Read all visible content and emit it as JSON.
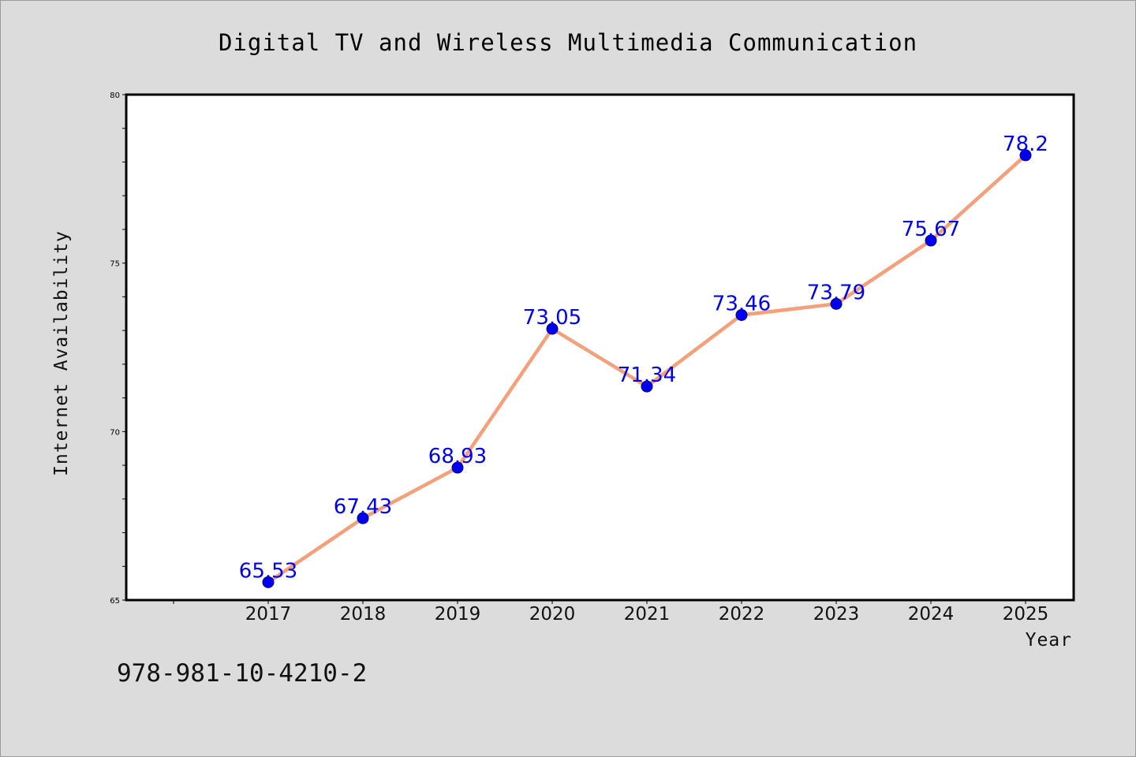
{
  "chart_data": {
    "type": "line",
    "title": "Digital TV and Wireless Multimedia Communication",
    "xlabel": "Year",
    "ylabel": "Internet Availability",
    "categories": [
      "2017",
      "2018",
      "2019",
      "2020",
      "2021",
      "2022",
      "2023",
      "2024",
      "2025"
    ],
    "series": [
      {
        "values": [
          65.53,
          67.43,
          68.93,
          73.05,
          71.34,
          73.46,
          73.79,
          75.67,
          78.2
        ],
        "labels": [
          "65.53",
          "67.43",
          "68.93",
          "73.05",
          "71.34",
          "73.46",
          "73.79",
          "75.67",
          "78.2"
        ]
      }
    ],
    "ylim": [
      65,
      80
    ],
    "yticks": [
      "65",
      "70",
      "75",
      "80"
    ],
    "ytick_values": [
      65,
      70,
      75,
      80
    ],
    "grid": false,
    "legend": "none",
    "colors": {
      "background": "#dcdcdc",
      "plot_area": "#ffffff",
      "line": "#f4a07a",
      "marker": "#0000ee",
      "data_label": "#0000ee"
    }
  },
  "footer_text": "978-981-10-4210-2"
}
